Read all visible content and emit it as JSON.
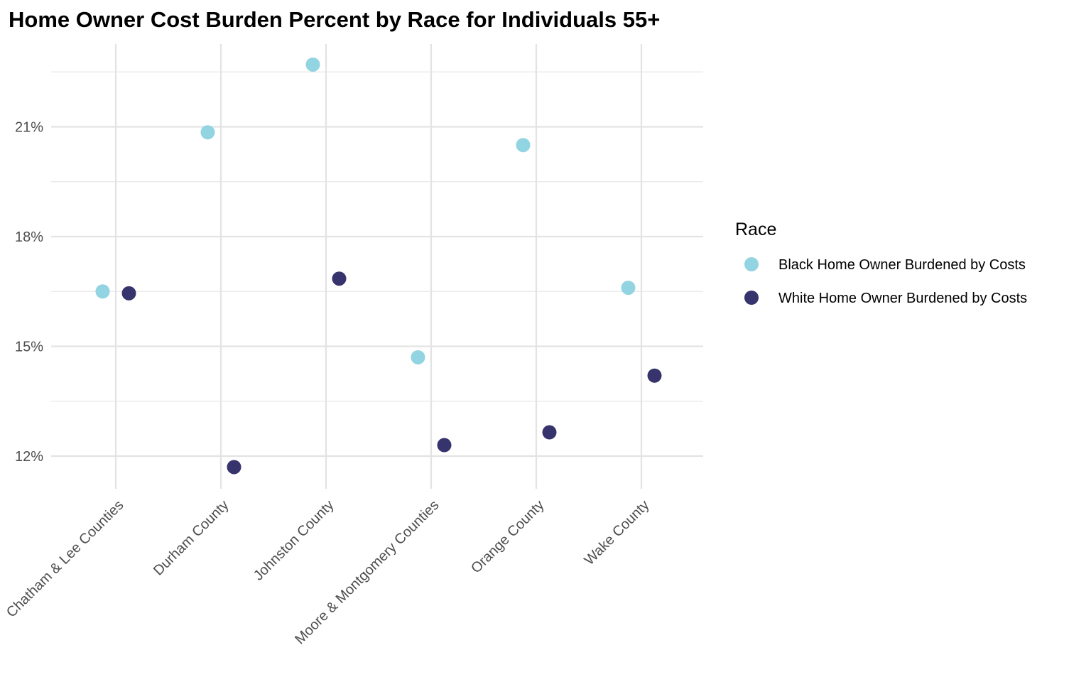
{
  "chart_data": {
    "type": "scatter",
    "title": "Home Owner Cost Burden Percent by Race for Individuals 55+",
    "xlabel": "",
    "ylabel": "",
    "categories": [
      "Chatham & Lee Counties",
      "Durham County",
      "Johnston County",
      "Moore & Montgomery Counties",
      "Orange County",
      "Wake County"
    ],
    "y_ticks": [
      12,
      15,
      18,
      21
    ],
    "y_tick_labels": [
      "12%",
      "15%",
      "18%",
      "21%"
    ],
    "ylim": [
      11.4,
      23.2
    ],
    "grid": true,
    "legend": {
      "title": "Race",
      "position": "right"
    },
    "series": [
      {
        "name": "Black Home Owner Burdened by Costs",
        "color": "#92d4e1",
        "values": [
          16.5,
          20.85,
          22.7,
          14.7,
          20.5,
          16.6
        ]
      },
      {
        "name": "White Home Owner Burdened by Costs",
        "color": "#37336c",
        "values": [
          16.45,
          11.7,
          16.85,
          12.3,
          12.65,
          14.2
        ]
      }
    ]
  }
}
